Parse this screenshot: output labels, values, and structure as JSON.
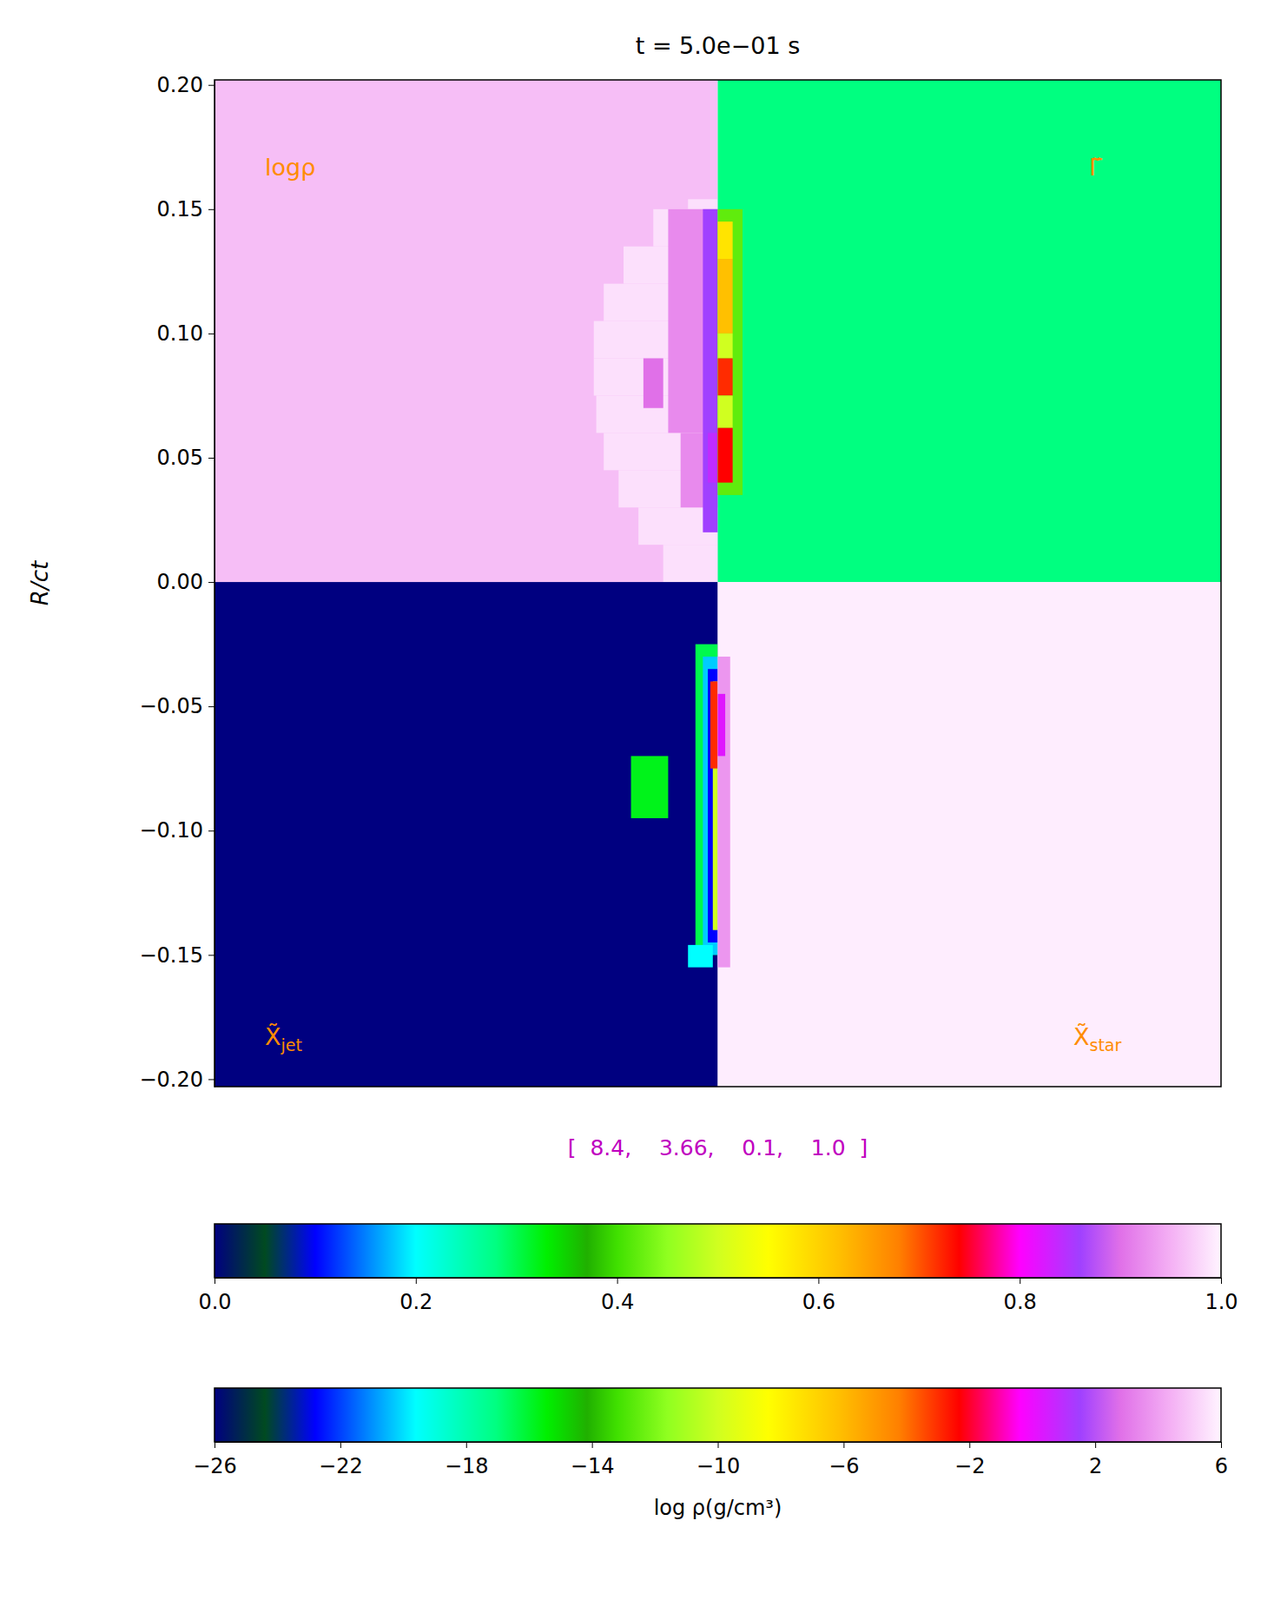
{
  "chart_data": {
    "type": "heatmap",
    "title": "t = 5.0e−01 s",
    "y_label": "R/ct",
    "xlim": [
      -0.203,
      0.203
    ],
    "ylim": [
      -0.203,
      0.202
    ],
    "tick_labels": "y",
    "yticks": [
      {
        "value": -0.2,
        "label": "−0.20"
      },
      {
        "value": -0.15,
        "label": "−0.15"
      },
      {
        "value": -0.1,
        "label": "−0.10"
      },
      {
        "value": -0.05,
        "label": "−0.05"
      },
      {
        "value": 0,
        "label": "0.00"
      },
      {
        "value": 0.05,
        "label": "0.05"
      },
      {
        "value": 0.1,
        "label": "0.10"
      },
      {
        "value": 0.15,
        "label": "0.15"
      },
      {
        "value": 0.2,
        "label": "0.20"
      }
    ],
    "annotation": "[  8.4,    3.66,    0.1,    1.0  ]",
    "colormap": {
      "stops": [
        0,
        0.05,
        0.1,
        0.15,
        0.2,
        0.28,
        0.33,
        0.37,
        0.4,
        0.45,
        0.5,
        0.55,
        0.62,
        0.68,
        0.74,
        0.8,
        0.86,
        0.9,
        0.95,
        1
      ],
      "colors": [
        "#000080",
        "#004a20",
        "#0000ff",
        "#0080ff",
        "#00ffff",
        "#00ff80",
        "#00f000",
        "#20b000",
        "#40e000",
        "#90ff20",
        "#d0ff20",
        "#ffff00",
        "#ffc000",
        "#ff8000",
        "#ff0000",
        "#ff00ff",
        "#a040ff",
        "#e070e8",
        "#f4b0f4",
        "#fff4ff"
      ]
    },
    "panels": [
      {
        "label": {
          "text": "logρ"
        },
        "x": [
          -0.203,
          0
        ],
        "y": [
          0,
          0.202
        ],
        "background": 0.96,
        "cells": [
          {
            "x": [
              -0.022,
              0
            ],
            "y": [
              0.0,
              0.015
            ],
            "value": 0.985
          },
          {
            "x": [
              -0.032,
              0
            ],
            "y": [
              0.015,
              0.03
            ],
            "value": 0.985
          },
          {
            "x": [
              -0.04,
              0
            ],
            "y": [
              0.03,
              0.045
            ],
            "value": 0.985
          },
          {
            "x": [
              -0.046,
              0
            ],
            "y": [
              0.045,
              0.06
            ],
            "value": 0.985
          },
          {
            "x": [
              -0.049,
              0
            ],
            "y": [
              0.06,
              0.075
            ],
            "value": 0.985
          },
          {
            "x": [
              -0.05,
              0
            ],
            "y": [
              0.075,
              0.09
            ],
            "value": 0.985
          },
          {
            "x": [
              -0.05,
              0
            ],
            "y": [
              0.09,
              0.105
            ],
            "value": 0.985
          },
          {
            "x": [
              -0.046,
              0
            ],
            "y": [
              0.105,
              0.12
            ],
            "value": 0.985
          },
          {
            "x": [
              -0.038,
              0
            ],
            "y": [
              0.12,
              0.135
            ],
            "value": 0.985
          },
          {
            "x": [
              -0.026,
              0
            ],
            "y": [
              0.135,
              0.15
            ],
            "value": 0.985
          },
          {
            "x": [
              -0.012,
              0
            ],
            "y": [
              0.15,
              0.154
            ],
            "value": 0.985
          },
          {
            "x": [
              -0.02,
              0
            ],
            "y": [
              0.06,
              0.15
            ],
            "value": 0.92
          },
          {
            "x": [
              -0.015,
              0
            ],
            "y": [
              0.03,
              0.06
            ],
            "value": 0.92
          },
          {
            "x": [
              -0.03,
              -0.022
            ],
            "y": [
              0.07,
              0.09
            ],
            "value": 0.9
          },
          {
            "x": [
              -0.006,
              0
            ],
            "y": [
              0.02,
              0.15
            ],
            "value": 0.86
          },
          {
            "x": [
              -0.004,
              0
            ],
            "y": [
              0.04,
              0.06
            ],
            "value": 0.84
          }
        ]
      },
      {
        "label": {
          "text": "Γ̃"
        },
        "x": [
          0,
          0.203
        ],
        "y": [
          0,
          0.202
        ],
        "background": 0.28,
        "cells": [
          {
            "x": [
              0,
              0.01
            ],
            "y": [
              0.035,
              0.15
            ],
            "value": 0.42
          },
          {
            "x": [
              0,
              0.006
            ],
            "y": [
              0.13,
              0.145
            ],
            "value": 0.58
          },
          {
            "x": [
              0,
              0.006
            ],
            "y": [
              0.1,
              0.13
            ],
            "value": 0.62
          },
          {
            "x": [
              0,
              0.006
            ],
            "y": [
              0.09,
              0.1
            ],
            "value": 0.5
          },
          {
            "x": [
              0,
              0.006
            ],
            "y": [
              0.075,
              0.09
            ],
            "value": 0.72
          },
          {
            "x": [
              0,
              0.006
            ],
            "y": [
              0.062,
              0.075
            ],
            "value": 0.5
          },
          {
            "x": [
              0,
              0.006
            ],
            "y": [
              0.04,
              0.062
            ],
            "value": 0.74
          }
        ]
      },
      {
        "label": {
          "text": "X̃",
          "sub": "jet"
        },
        "x": [
          -0.203,
          0
        ],
        "y": [
          -0.203,
          0
        ],
        "background": 0,
        "cells": [
          {
            "x": [
              -0.035,
              -0.02
            ],
            "y": [
              -0.095,
              -0.07
            ],
            "value": 0.32
          },
          {
            "x": [
              -0.009,
              0
            ],
            "y": [
              -0.15,
              -0.025
            ],
            "value": 0.3
          },
          {
            "x": [
              -0.006,
              0
            ],
            "y": [
              -0.15,
              -0.03
            ],
            "value": 0.18
          },
          {
            "x": [
              -0.004,
              0
            ],
            "y": [
              -0.145,
              -0.035
            ],
            "value": 0.1
          },
          {
            "x": [
              -0.002,
              0
            ],
            "y": [
              -0.14,
              -0.04
            ],
            "value": 0.5
          },
          {
            "x": [
              -0.003,
              0
            ],
            "y": [
              -0.075,
              -0.04
            ],
            "value": 0.72
          },
          {
            "x": [
              -0.012,
              -0.002
            ],
            "y": [
              -0.155,
              -0.146
            ],
            "value": 0.2
          }
        ]
      },
      {
        "label": {
          "text": "X̃",
          "sub": "star"
        },
        "x": [
          0,
          0.203
        ],
        "y": [
          -0.203,
          0
        ],
        "background": 0.995,
        "cells": [
          {
            "x": [
              0,
              0.005
            ],
            "y": [
              -0.155,
              -0.03
            ],
            "value": 0.93
          },
          {
            "x": [
              0,
              0.003
            ],
            "y": [
              -0.07,
              -0.045
            ],
            "value": 0.82
          }
        ]
      }
    ],
    "colorbars": [
      {
        "range": [
          0,
          1
        ],
        "ticks": [
          {
            "value": 0,
            "label": "0.0"
          },
          {
            "value": 0.2,
            "label": "0.2"
          },
          {
            "value": 0.4,
            "label": "0.4"
          },
          {
            "value": 0.6,
            "label": "0.6"
          },
          {
            "value": 0.8,
            "label": "0.8"
          },
          {
            "value": 1,
            "label": "1.0"
          }
        ]
      },
      {
        "range": [
          -26,
          6
        ],
        "label": "log ρ(g/cm³)",
        "ticks": [
          {
            "value": -26,
            "label": "−26"
          },
          {
            "value": -22,
            "label": "−22"
          },
          {
            "value": -18,
            "label": "−18"
          },
          {
            "value": -14,
            "label": "−14"
          },
          {
            "value": -10,
            "label": "−10"
          },
          {
            "value": -6,
            "label": "−6"
          },
          {
            "value": -2,
            "label": "−2"
          },
          {
            "value": 2,
            "label": "2"
          },
          {
            "value": 6,
            "label": "6"
          }
        ]
      }
    ]
  }
}
